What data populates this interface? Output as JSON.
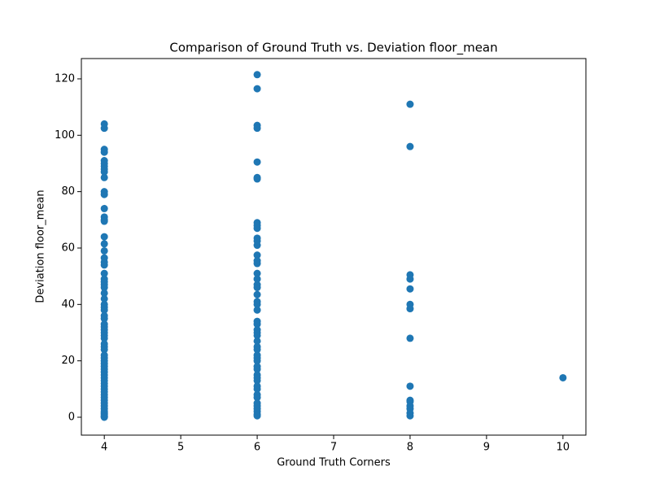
{
  "chart_data": {
    "type": "scatter",
    "title": "Comparison of Ground Truth vs. Deviation floor_mean",
    "x_label": "Ground Truth Corners",
    "y_label": "Deviation floor_mean",
    "color": "#1f77b4",
    "x": [
      4,
      4,
      4,
      4,
      4,
      4,
      4,
      4,
      4,
      4,
      4,
      4,
      4,
      4,
      4,
      4,
      4,
      4,
      4,
      4,
      4,
      4,
      4,
      4,
      4,
      4,
      4,
      4,
      4,
      4,
      4,
      4,
      4,
      4,
      4,
      4,
      4,
      4,
      4,
      4,
      4,
      4,
      4,
      4,
      4,
      4,
      4,
      4,
      4,
      4,
      4,
      4,
      4,
      4,
      4,
      4,
      4,
      4,
      4,
      4,
      4,
      4,
      4,
      4,
      4,
      4,
      4,
      4,
      4,
      6,
      6,
      6,
      6,
      6,
      6,
      6,
      6,
      6,
      6,
      6,
      6,
      6,
      6,
      6,
      6,
      6,
      6,
      6,
      6,
      6,
      6,
      6,
      6,
      6,
      6,
      6,
      6,
      6,
      6,
      6,
      6,
      6,
      6,
      6,
      6,
      6,
      6,
      6,
      6,
      6,
      6,
      6,
      6,
      6,
      6,
      6,
      6,
      6,
      6,
      8,
      8,
      8,
      8,
      8,
      8,
      8,
      8,
      8,
      8,
      8,
      8,
      8,
      8,
      8,
      10
    ],
    "values": [
      104,
      102.5,
      95,
      94,
      91,
      90,
      89,
      88,
      87,
      85,
      80,
      79,
      74,
      71,
      70,
      69.5,
      64,
      61.5,
      59,
      56.5,
      55,
      54,
      51,
      49,
      48,
      47,
      46,
      44,
      42,
      40,
      39,
      38,
      36,
      35,
      33,
      32,
      31,
      30,
      29,
      28,
      26,
      25,
      24,
      22,
      21,
      20,
      19,
      18,
      17,
      16,
      15,
      14,
      13,
      12,
      11,
      10,
      9,
      8,
      7,
      6,
      5,
      4,
      3,
      2,
      1.5,
      1,
      0.5,
      0.2,
      0,
      121.5,
      116.5,
      103.5,
      102.5,
      90.5,
      85,
      84.5,
      69,
      68,
      67,
      63.5,
      62.5,
      61,
      57.5,
      55.5,
      54.5,
      51,
      49,
      47,
      46,
      43.5,
      41,
      40,
      38,
      34,
      33,
      31,
      30,
      29,
      27,
      25,
      24,
      22,
      21,
      20,
      18,
      17,
      15,
      14,
      13,
      11,
      10,
      8,
      7,
      5,
      4,
      3,
      2,
      1,
      0.5,
      111,
      96,
      50.5,
      49,
      45.5,
      40,
      38.5,
      28,
      11,
      6,
      5.5,
      4,
      3,
      1.5,
      0.5,
      14
    ],
    "xlim": [
      3.7,
      10.3
    ],
    "ylim": [
      -6.35,
      127.2
    ],
    "xticks": [
      4,
      5,
      6,
      7,
      8,
      9,
      10
    ],
    "yticks": [
      0,
      20,
      40,
      60,
      80,
      100,
      120
    ]
  }
}
